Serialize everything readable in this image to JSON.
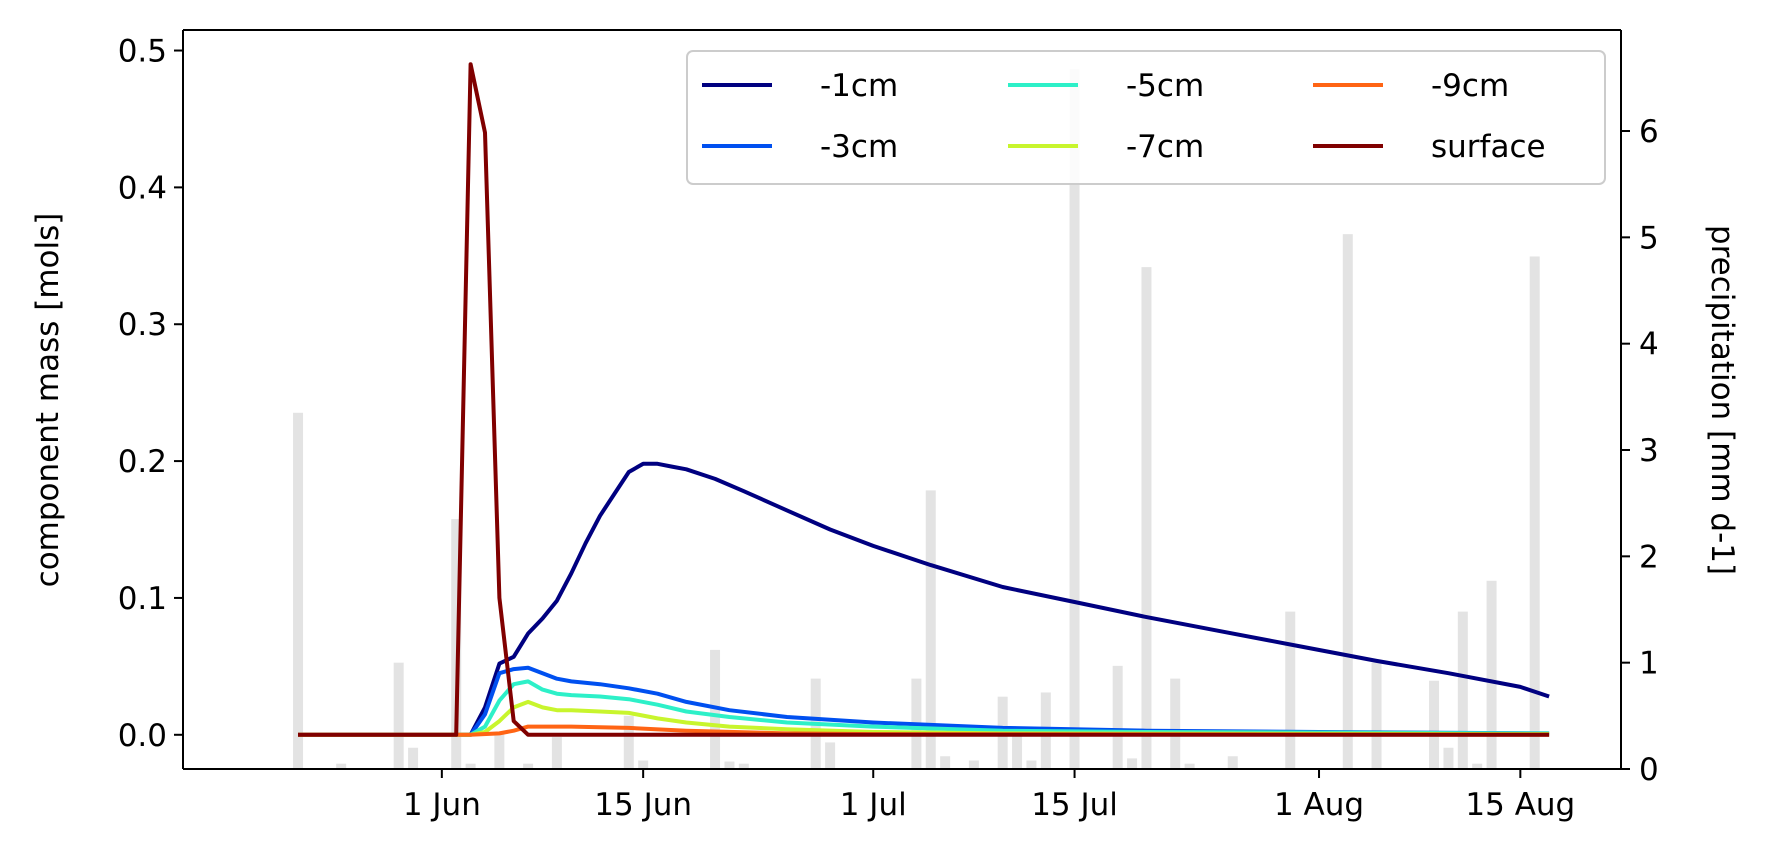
{
  "chart_data": {
    "type": "line",
    "title": "",
    "xlabel": "",
    "ylabel": "component mass [mols]",
    "y2label": "precipitation [mm d-1]",
    "ylim": [
      -0.025,
      0.515
    ],
    "y2lim": [
      0,
      6.95
    ],
    "xlim": [
      "2023-05-14",
      "2023-08-22"
    ],
    "yticks": [
      "0.0",
      "0.1",
      "0.2",
      "0.3",
      "0.4",
      "0.5"
    ],
    "y2ticks": [
      "0",
      "1",
      "2",
      "3",
      "4",
      "5",
      "6"
    ],
    "xticks": [
      {
        "date": "2023-06-01",
        "label": "1 Jun"
      },
      {
        "date": "2023-06-15",
        "label": "15 Jun"
      },
      {
        "date": "2023-07-01",
        "label": "1 Jul"
      },
      {
        "date": "2023-07-15",
        "label": "15 Jul"
      },
      {
        "date": "2023-08-01",
        "label": "1 Aug"
      },
      {
        "date": "2023-08-15",
        "label": "15 Aug"
      }
    ],
    "legend_position": "upper-right",
    "grid": false,
    "series": [
      {
        "name": "-1cm",
        "color": "#000080",
        "x": [
          "2023-05-22",
          "2023-06-03",
          "2023-06-04",
          "2023-06-05",
          "2023-06-06",
          "2023-06-07",
          "2023-06-08",
          "2023-06-09",
          "2023-06-10",
          "2023-06-11",
          "2023-06-12",
          "2023-06-13",
          "2023-06-14",
          "2023-06-15",
          "2023-06-16",
          "2023-06-17",
          "2023-06-18",
          "2023-06-20",
          "2023-06-22",
          "2023-06-25",
          "2023-06-28",
          "2023-07-01",
          "2023-07-05",
          "2023-07-10",
          "2023-07-15",
          "2023-07-20",
          "2023-07-25",
          "2023-07-30",
          "2023-08-05",
          "2023-08-10",
          "2023-08-15",
          "2023-08-17"
        ],
        "values": [
          0,
          0,
          0.02,
          0.052,
          0.057,
          0.074,
          0.085,
          0.098,
          0.118,
          0.14,
          0.16,
          0.176,
          0.192,
          0.198,
          0.198,
          0.196,
          0.194,
          0.187,
          0.178,
          0.164,
          0.15,
          0.138,
          0.124,
          0.108,
          0.097,
          0.086,
          0.076,
          0.066,
          0.054,
          0.045,
          0.035,
          0.028
        ]
      },
      {
        "name": "-3cm",
        "color": "#0050f0",
        "x": [
          "2023-05-22",
          "2023-06-03",
          "2023-06-04",
          "2023-06-05",
          "2023-06-06",
          "2023-06-07",
          "2023-06-08",
          "2023-06-09",
          "2023-06-10",
          "2023-06-12",
          "2023-06-14",
          "2023-06-16",
          "2023-06-18",
          "2023-06-21",
          "2023-06-25",
          "2023-07-01",
          "2023-07-10",
          "2023-07-20",
          "2023-08-01",
          "2023-08-17"
        ],
        "values": [
          0,
          0,
          0.015,
          0.045,
          0.048,
          0.049,
          0.045,
          0.041,
          0.039,
          0.037,
          0.034,
          0.03,
          0.024,
          0.018,
          0.013,
          0.009,
          0.005,
          0.003,
          0.002,
          0.001
        ]
      },
      {
        "name": "-5cm",
        "color": "#2df0c8",
        "x": [
          "2023-05-22",
          "2023-06-03",
          "2023-06-04",
          "2023-06-05",
          "2023-06-06",
          "2023-06-07",
          "2023-06-08",
          "2023-06-09",
          "2023-06-10",
          "2023-06-12",
          "2023-06-14",
          "2023-06-16",
          "2023-06-18",
          "2023-06-21",
          "2023-06-25",
          "2023-07-01",
          "2023-07-10",
          "2023-07-20",
          "2023-08-17"
        ],
        "values": [
          0,
          0,
          0.006,
          0.025,
          0.037,
          0.039,
          0.033,
          0.03,
          0.029,
          0.028,
          0.026,
          0.022,
          0.017,
          0.013,
          0.009,
          0.006,
          0.003,
          0.002,
          0.001
        ]
      },
      {
        "name": "-7cm",
        "color": "#c8f52d",
        "x": [
          "2023-05-22",
          "2023-06-03",
          "2023-06-04",
          "2023-06-05",
          "2023-06-06",
          "2023-06-07",
          "2023-06-08",
          "2023-06-09",
          "2023-06-10",
          "2023-06-12",
          "2023-06-14",
          "2023-06-16",
          "2023-06-18",
          "2023-06-21",
          "2023-06-25",
          "2023-07-01",
          "2023-07-10",
          "2023-08-17"
        ],
        "values": [
          0,
          0,
          0.002,
          0.01,
          0.02,
          0.024,
          0.02,
          0.018,
          0.018,
          0.017,
          0.016,
          0.012,
          0.009,
          0.006,
          0.004,
          0.002,
          0.001,
          0.0005
        ]
      },
      {
        "name": "-9cm",
        "color": "#ff6414",
        "x": [
          "2023-05-22",
          "2023-06-03",
          "2023-06-05",
          "2023-06-06",
          "2023-06-07",
          "2023-06-10",
          "2023-06-14",
          "2023-06-18",
          "2023-06-25",
          "2023-07-01",
          "2023-08-17"
        ],
        "values": [
          0,
          0,
          0.001,
          0.003,
          0.006,
          0.006,
          0.005,
          0.003,
          0.001,
          0.0005,
          0
        ]
      },
      {
        "name": "surface",
        "color": "#800000",
        "x": [
          "2023-05-22",
          "2023-06-02",
          "2023-06-03",
          "2023-06-04",
          "2023-06-05",
          "2023-06-06",
          "2023-06-07",
          "2023-08-17"
        ],
        "values": [
          0,
          0,
          0.49,
          0.44,
          0.1,
          0.01,
          0,
          0
        ]
      }
    ],
    "bars": {
      "name": "precipitation",
      "color": "#e3e3e3",
      "x": [
        "2023-05-22",
        "2023-05-25",
        "2023-05-29",
        "2023-05-30",
        "2023-06-02",
        "2023-06-03",
        "2023-06-05",
        "2023-06-07",
        "2023-06-09",
        "2023-06-14",
        "2023-06-15",
        "2023-06-20",
        "2023-06-21",
        "2023-06-22",
        "2023-06-27",
        "2023-06-28",
        "2023-07-04",
        "2023-07-05",
        "2023-07-06",
        "2023-07-08",
        "2023-07-10",
        "2023-07-11",
        "2023-07-12",
        "2023-07-13",
        "2023-07-15",
        "2023-07-18",
        "2023-07-19",
        "2023-07-20",
        "2023-07-22",
        "2023-07-23",
        "2023-07-26",
        "2023-07-30",
        "2023-08-03",
        "2023-08-05",
        "2023-08-09",
        "2023-08-10",
        "2023-08-11",
        "2023-08-12",
        "2023-08-13",
        "2023-08-16"
      ],
      "values": [
        3.35,
        0.05,
        1.0,
        0.2,
        2.35,
        0.05,
        0.35,
        0.05,
        0.3,
        0.5,
        0.08,
        1.12,
        0.07,
        0.05,
        0.85,
        0.25,
        0.85,
        2.62,
        0.12,
        0.08,
        0.68,
        0.35,
        0.08,
        0.72,
        6.58,
        0.97,
        0.1,
        4.72,
        0.85,
        0.05,
        0.12,
        1.48,
        5.03,
        1.0,
        0.83,
        0.2,
        1.48,
        0.05,
        1.77,
        4.82
      ]
    }
  }
}
